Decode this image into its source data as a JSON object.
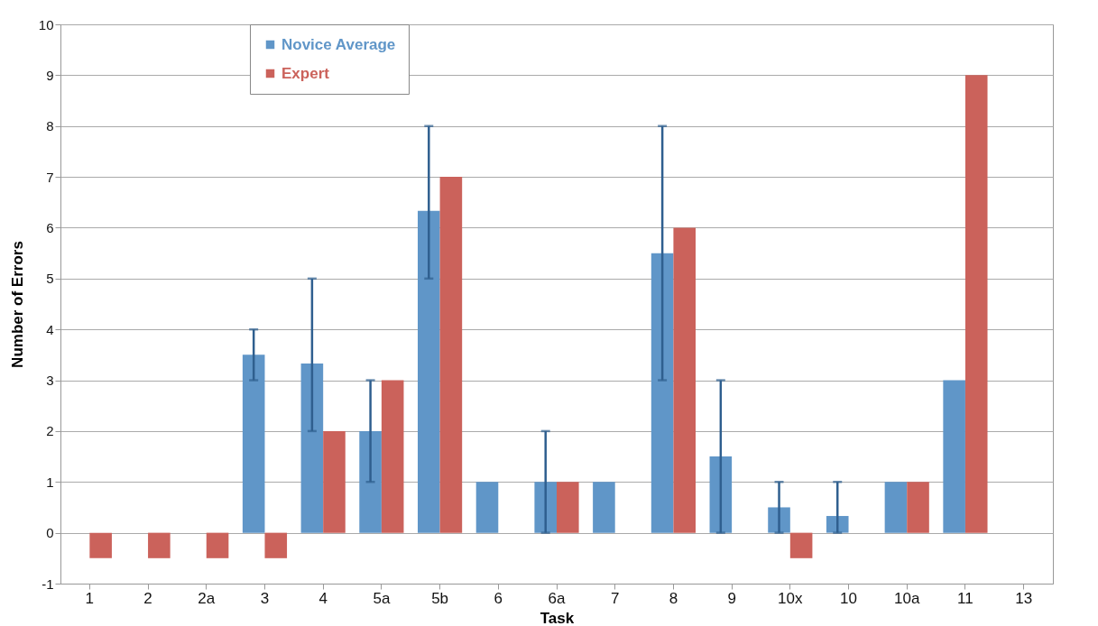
{
  "chart_data": {
    "type": "bar",
    "xlabel": "Task",
    "ylabel": "Number of Errors",
    "categories": [
      "1",
      "2",
      "2a",
      "3",
      "4",
      "5a",
      "5b",
      "6",
      "6a",
      "7",
      "8",
      "9",
      "10x",
      "10",
      "10a",
      "11",
      "13"
    ],
    "series": [
      {
        "name": "Novice Average",
        "color": "#6096c8",
        "values": [
          0,
          0,
          0,
          3.5,
          3.33,
          2,
          6.33,
          1,
          1,
          1,
          5.5,
          1.5,
          0.5,
          0.33,
          1,
          3,
          0
        ],
        "errors": [
          null,
          null,
          null,
          [
            3,
            4
          ],
          [
            2,
            5
          ],
          [
            1,
            3
          ],
          [
            5,
            8
          ],
          null,
          [
            0,
            2
          ],
          null,
          [
            3,
            8
          ],
          [
            0,
            3
          ],
          [
            0,
            1
          ],
          [
            0,
            1
          ],
          null,
          null,
          null
        ]
      },
      {
        "name": "Expert",
        "color": "#cb625b",
        "values": [
          -0.5,
          -0.5,
          -0.5,
          -0.5,
          2,
          3,
          7,
          null,
          1,
          null,
          6,
          null,
          -0.5,
          null,
          1,
          9,
          null
        ]
      }
    ],
    "ylim": [
      -1,
      10
    ],
    "yticks": [
      -1,
      0,
      1,
      2,
      3,
      4,
      5,
      6,
      7,
      8,
      9,
      10
    ],
    "grid": "y",
    "legend": "top left"
  }
}
